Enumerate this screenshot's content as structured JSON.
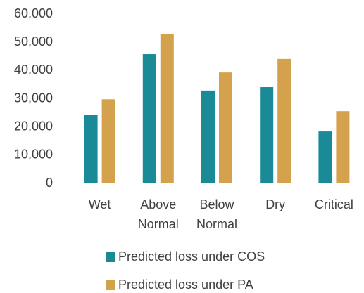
{
  "chart_data": {
    "type": "bar",
    "categories": [
      "Wet",
      "Above Normal",
      "Below Normal",
      "Dry",
      "Critical"
    ],
    "series": [
      {
        "name": "Predicted loss under COS",
        "color": "#1a8a96",
        "values": [
          24200,
          45800,
          32900,
          34100,
          18400
        ]
      },
      {
        "name": "Predicted loss under PA",
        "color": "#d4a24c",
        "values": [
          29800,
          53000,
          39300,
          44100,
          25600
        ]
      }
    ],
    "ylim": [
      0,
      60000
    ],
    "yticks": [
      0,
      {
        "value": 10000,
        "label": "10,000"
      },
      {
        "value": 20000,
        "label": "20,000"
      },
      {
        "value": 30000,
        "label": "30,000"
      },
      {
        "value": 40000,
        "label": "40,000"
      },
      {
        "value": 50000,
        "label": "50,000"
      },
      {
        "value": 60000,
        "label": "60,000"
      }
    ],
    "grid": false,
    "legend": "bottom"
  }
}
